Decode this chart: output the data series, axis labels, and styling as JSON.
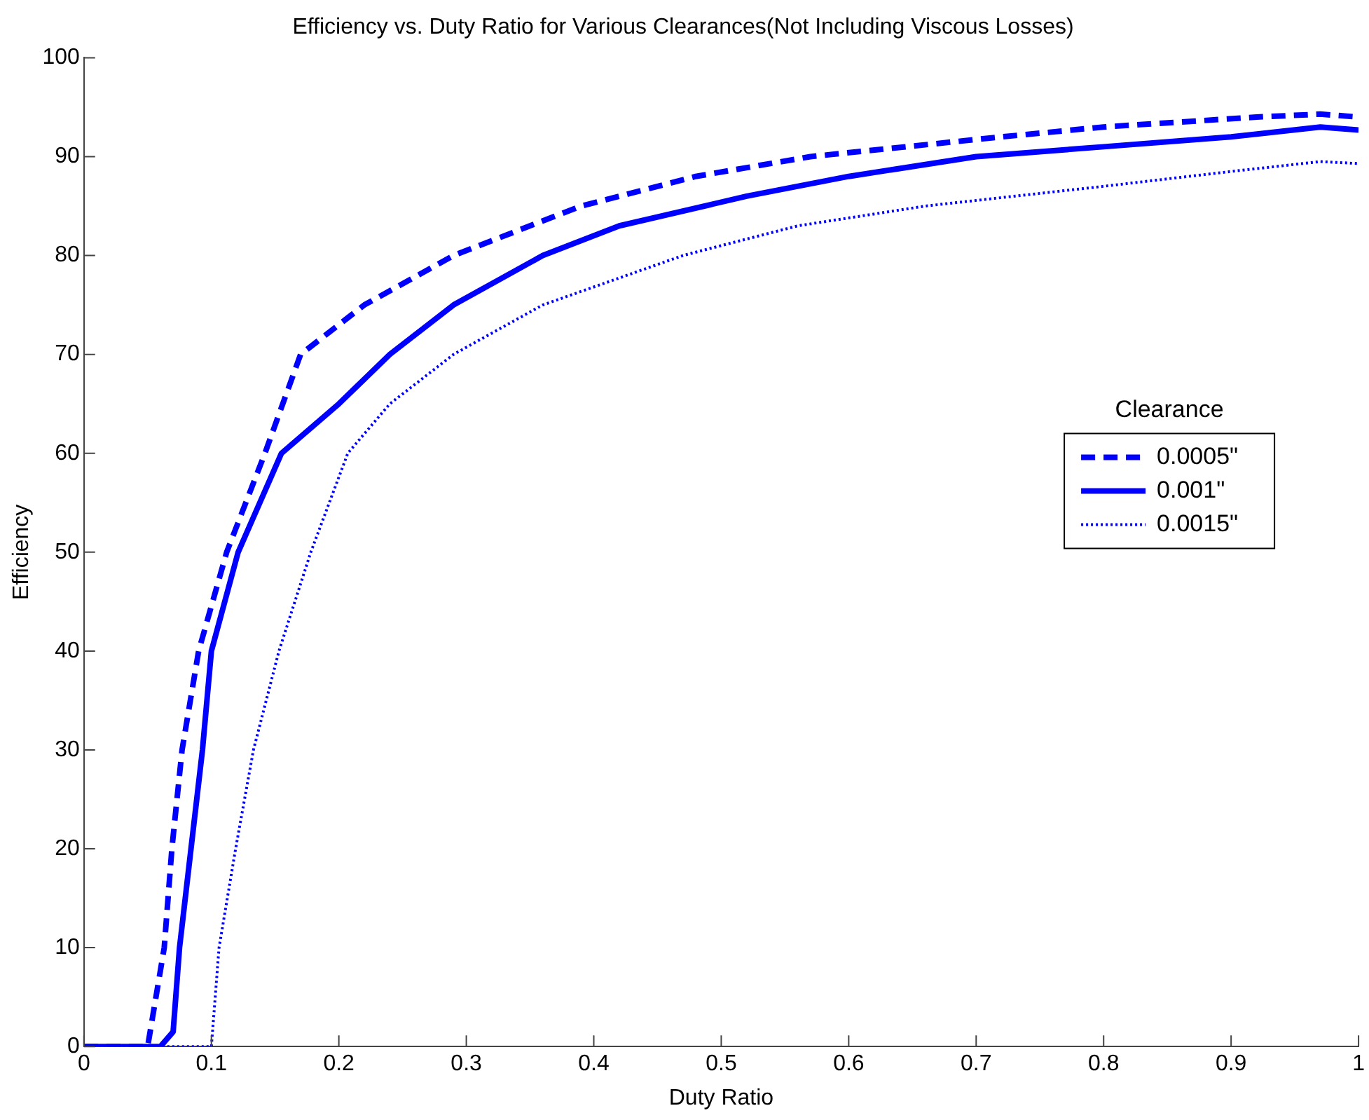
{
  "chart_data": {
    "type": "line",
    "title": "Efficiency vs. Duty Ratio for Various Clearances(Not Including Viscous Losses)",
    "xlabel": "Duty Ratio",
    "ylabel": "Efficiency",
    "legend_title": "Clearance",
    "legend": "right",
    "xlim": [
      0,
      1
    ],
    "xticks": [
      0,
      0.1,
      0.2,
      0.3,
      0.4,
      0.5,
      0.6,
      0.7,
      0.8,
      0.9,
      1
    ],
    "ylim": [
      0,
      100
    ],
    "yticks": [
      0,
      10,
      20,
      30,
      40,
      50,
      60,
      70,
      80,
      90,
      100
    ],
    "grid": false,
    "marker": "none",
    "series": [
      {
        "name": "0.0005\"",
        "color": "#0000ff",
        "line_style": "dashed",
        "x": [
          0,
          0.05,
          0.063,
          0.069,
          0.077,
          0.09,
          0.112,
          0.142,
          0.17,
          0.22,
          0.29,
          0.39,
          0.48,
          0.57,
          0.72,
          0.8,
          0.92,
          0.97,
          1
        ],
        "values": [
          0,
          0,
          10,
          20,
          30,
          40,
          50,
          60,
          70,
          75,
          80,
          85,
          88,
          90,
          92,
          93,
          94,
          94.3,
          94
        ]
      },
      {
        "name": "0.001\"",
        "color": "#0000ff",
        "line_style": "solid",
        "x": [
          0,
          0.06,
          0.07,
          0.075,
          0.084,
          0.093,
          0.1,
          0.121,
          0.155,
          0.2,
          0.24,
          0.29,
          0.36,
          0.42,
          0.52,
          0.6,
          0.7,
          0.8,
          0.9,
          0.97,
          1
        ],
        "values": [
          0,
          0,
          1.5,
          10,
          20,
          30,
          40,
          50,
          60,
          65,
          70,
          75,
          80,
          83,
          86,
          88,
          90,
          91,
          92,
          93,
          92.7
        ]
      },
      {
        "name": "0.0015\"",
        "color": "#0000ff",
        "line_style": "dotted",
        "x": [
          0,
          0.1,
          0.106,
          0.119,
          0.133,
          0.153,
          0.178,
          0.207,
          0.24,
          0.29,
          0.36,
          0.47,
          0.56,
          0.66,
          0.8,
          0.9,
          0.97,
          1
        ],
        "values": [
          0,
          0,
          10,
          20,
          30,
          40,
          50,
          60,
          65,
          70,
          75,
          80,
          83,
          85,
          87,
          88.5,
          89.5,
          89.3
        ]
      }
    ]
  }
}
